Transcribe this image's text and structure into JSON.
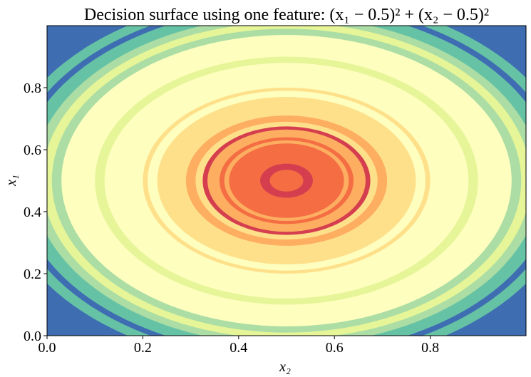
{
  "chart_data": {
    "type": "contour",
    "title": "Decision surface using one feature: (x₁ − 0.5)² + (x₂ − 0.5)²",
    "xlabel": "x₂",
    "ylabel": "x₁",
    "xlim": [
      0,
      1
    ],
    "ylim": [
      0,
      1
    ],
    "xticks": [
      {
        "value": 0,
        "label": "0.0"
      },
      {
        "value": 0.2,
        "label": "0.2"
      },
      {
        "value": 0.4,
        "label": "0.4"
      },
      {
        "value": 0.6,
        "label": "0.6"
      },
      {
        "value": 0.8,
        "label": "0.8"
      }
    ],
    "yticks": [
      {
        "value": 0,
        "label": "0.0"
      },
      {
        "value": 0.2,
        "label": "0.2"
      },
      {
        "value": 0.4,
        "label": "0.4"
      },
      {
        "value": 0.6,
        "label": "0.6"
      },
      {
        "value": 0.8,
        "label": "0.8"
      }
    ],
    "center": [
      0.5,
      0.5
    ],
    "background": "#3e6db2",
    "bands": [
      {
        "r": 0.6,
        "color": "#66c2a5"
      },
      {
        "r": 0.575,
        "color": "#3e6db2"
      },
      {
        "r": 0.56,
        "color": "#66c2a5"
      },
      {
        "r": 0.53,
        "color": "#abdda4"
      },
      {
        "r": 0.51,
        "color": "#e6f598"
      },
      {
        "r": 0.49,
        "color": "#abdda4"
      },
      {
        "r": 0.47,
        "color": "#fefebe"
      },
      {
        "r": 0.4,
        "color": "#e6f598"
      },
      {
        "r": 0.38,
        "color": "#fefebe"
      },
      {
        "r": 0.3,
        "color": "#fee08b"
      },
      {
        "r": 0.29,
        "color": "#fefebe"
      },
      {
        "r": 0.27,
        "color": "#fee08b"
      },
      {
        "r": 0.21,
        "color": "#fdae61"
      },
      {
        "r": 0.19,
        "color": "#fee08b"
      },
      {
        "r": 0.175,
        "color": "#d53e4f"
      },
      {
        "r": 0.165,
        "color": "#fdae61"
      },
      {
        "r": 0.14,
        "color": "#f46d43"
      },
      {
        "r": 0.13,
        "color": "#fdae61"
      },
      {
        "r": 0.12,
        "color": "#f46d43"
      },
      {
        "r": 0.055,
        "color": "#d53e4f"
      },
      {
        "r": 0.035,
        "color": "#f46d43"
      }
    ]
  }
}
